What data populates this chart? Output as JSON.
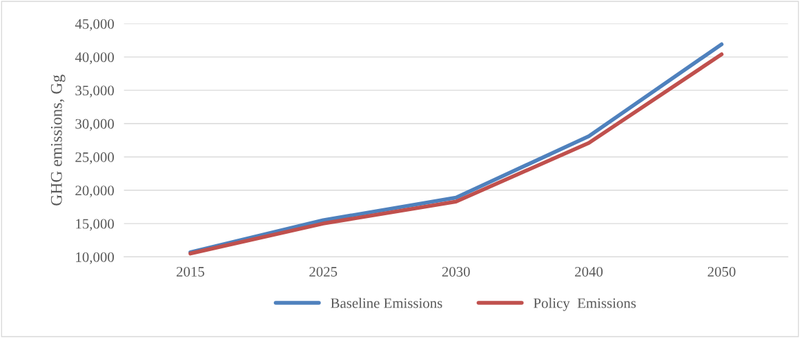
{
  "chart_data": {
    "type": "line",
    "ylabel": "GHG emissions, Gg",
    "categories": [
      "2015",
      "2025",
      "2030",
      "2040",
      "2050"
    ],
    "series": [
      {
        "name": "Baseline Emissions",
        "color": "#4f81bd",
        "values": [
          10700,
          15500,
          18900,
          28100,
          41900
        ]
      },
      {
        "name": "Policy  Emissions",
        "color": "#c0504d",
        "values": [
          10500,
          15000,
          18300,
          27100,
          40400
        ]
      }
    ],
    "ylim": [
      10000,
      45000
    ],
    "yticks": [
      {
        "value": 10000,
        "label": "10,000"
      },
      {
        "value": 15000,
        "label": "15,000"
      },
      {
        "value": 20000,
        "label": "20,000"
      },
      {
        "value": 25000,
        "label": "25,000"
      },
      {
        "value": 30000,
        "label": "30,000"
      },
      {
        "value": 35000,
        "label": "35,000"
      },
      {
        "value": 40000,
        "label": "40,000"
      },
      {
        "value": 45000,
        "label": "45,000"
      }
    ],
    "grid": "y",
    "legend": "bottom",
    "marker": "none",
    "line_style": "solid"
  }
}
